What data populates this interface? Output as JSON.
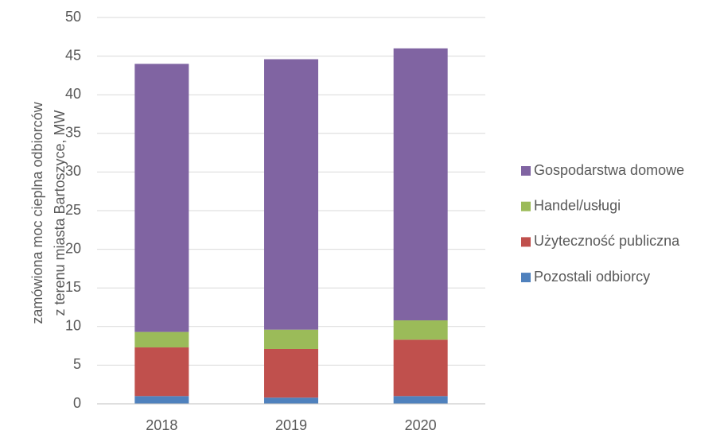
{
  "chart_data": {
    "type": "stacked_bar",
    "ylabel": [
      "zamówiona moc cieplna odbiorców",
      "z terenu miasta Bartoszyce, MW"
    ],
    "categories": [
      "2018",
      "2019",
      "2020"
    ],
    "series": [
      {
        "name": "Pozostali odbiorcy",
        "color": "#4f81bd",
        "values": [
          1.0,
          0.8,
          1.0
        ]
      },
      {
        "name": "Użyteczność publiczna",
        "color": "#c0504d",
        "values": [
          6.3,
          6.3,
          7.3
        ]
      },
      {
        "name": "Handel/usługi",
        "color": "#9bbb59",
        "values": [
          2.0,
          2.5,
          2.5
        ]
      },
      {
        "name": "Gospodarstwa domowe",
        "color": "#8064a2",
        "values": [
          34.7,
          35.0,
          35.2
        ]
      }
    ],
    "ylim": [
      0,
      50
    ],
    "yticks": [
      0,
      5,
      10,
      15,
      20,
      25,
      30,
      35,
      40,
      45,
      50
    ],
    "grid": true,
    "legend": "right"
  }
}
